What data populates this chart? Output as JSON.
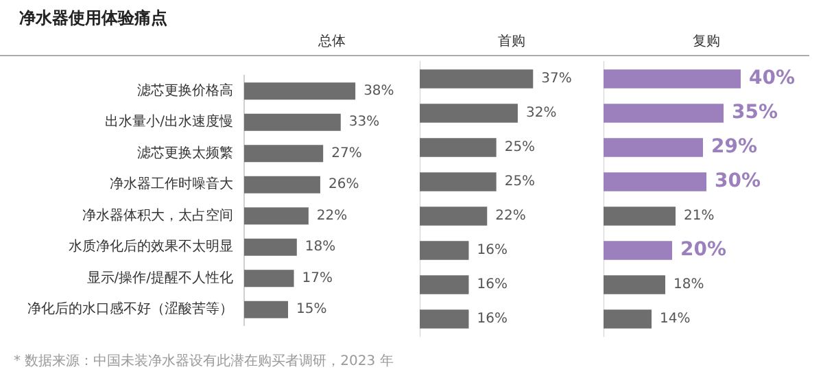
{
  "chart_data": [
    {
      "type": "bar",
      "orientation": "horizontal",
      "title": "净水器使用体验痛点",
      "subtitle": "总体",
      "categories": [
        "滤芯更换价格高",
        "出水量小/出水速度慢",
        "滤芯更换太频繁",
        "净水器工作时噪音大",
        "净水器体积大，太占空间",
        "水质净化后的效果不太明显",
        "显示/操作/提醒不人性化",
        "净化后的水口感不好（涩酸苦等）"
      ],
      "values": [
        38,
        33,
        27,
        26,
        22,
        18,
        17,
        15
      ],
      "color": "#6e6e6e",
      "value_labels": [
        "38%",
        "33%",
        "27%",
        "26%",
        "22%",
        "18%",
        "17%",
        "15%"
      ],
      "tick_labels": "y",
      "annotations": [
        "* 数据来源：中国未装净水器设有此潜在购买者调研，2023 年"
      ]
    },
    {
      "type": "bar",
      "orientation": "horizontal",
      "subtitle": "首购",
      "categories": [
        null,
        null,
        null,
        null,
        null,
        null,
        null,
        null
      ],
      "values": [
        37,
        32,
        25,
        25,
        22,
        16,
        16,
        16
      ],
      "color": "#6e6e6e",
      "value_labels": [
        "37%",
        "32%",
        "25%",
        "25%",
        "22%",
        "16%",
        "16%",
        "16%"
      ],
      "tick_labels": false
    },
    {
      "type": "bar",
      "orientation": "horizontal",
      "subtitle": "复购",
      "categories": [
        null,
        null,
        null,
        null,
        null,
        null,
        null,
        null
      ],
      "values": [
        40,
        35,
        29,
        30,
        21,
        20,
        18,
        14
      ],
      "colors": [
        "#9b80bd",
        "#9b80bd",
        "#9b80bd",
        "#9b80bd",
        "#6e6e6e",
        "#9b80bd",
        "#6e6e6e",
        "#6e6e6e"
      ],
      "value_labels": [
        "40%",
        "35%",
        "29%",
        "30%",
        "21%",
        "20%",
        "18%",
        "14%"
      ],
      "tick_labels": false
    }
  ]
}
